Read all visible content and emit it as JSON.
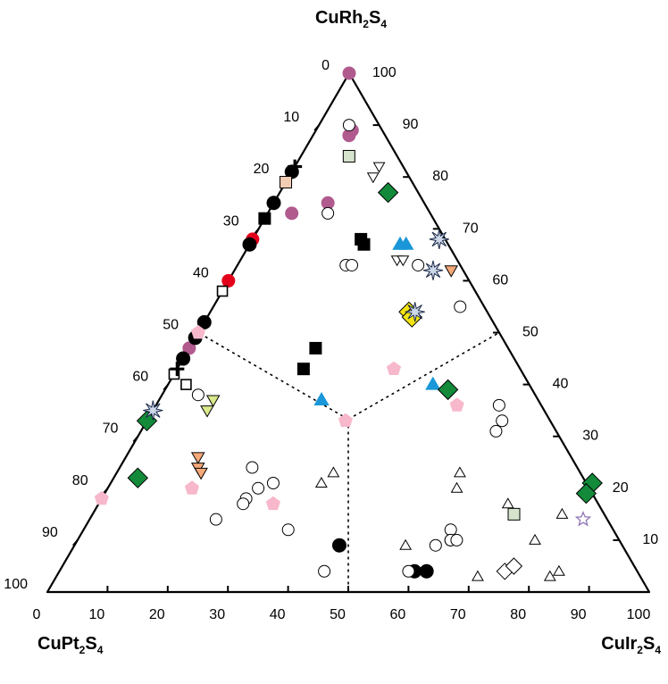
{
  "chart_data": {
    "type": "scatter",
    "subtype": "ternary",
    "vertices": {
      "top": {
        "main": "CuRh",
        "sub1": "2",
        "mid": "S",
        "sub2": "4"
      },
      "left": {
        "main": "CuPt",
        "sub1": "2",
        "mid": "S",
        "sub2": "4"
      },
      "right": {
        "main": "CuIr",
        "sub1": "2",
        "mid": "S",
        "sub2": "4"
      }
    },
    "axes": {
      "bottom": {
        "component": "CuIr2S4",
        "ticks": [
          "0",
          "10",
          "20",
          "30",
          "40",
          "50",
          "60",
          "70",
          "80",
          "90",
          "100"
        ]
      },
      "left": {
        "component": "CuPt2S4",
        "ticks": [
          "0",
          "10",
          "20",
          "30",
          "40",
          "50",
          "60",
          "70",
          "80",
          "90",
          "100"
        ]
      },
      "right": {
        "component": "CuRh2S4",
        "ticks": [
          "0",
          "10",
          "20",
          "30",
          "40",
          "50",
          "60",
          "70",
          "80",
          "90",
          "100"
        ]
      }
    },
    "boundaries": {
      "center": {
        "rh": 33.3,
        "ir": 33.3
      },
      "ends": [
        {
          "rh": 50,
          "ir": 0
        },
        {
          "rh": 50,
          "ir": 50
        },
        {
          "rh": 0,
          "ir": 50
        }
      ],
      "style": "dotted"
    },
    "grid": false,
    "colors": {
      "magenta": "#b05a8e",
      "red": "#e3001b",
      "green": "#138a3a",
      "blue": "#1a97d8",
      "yellow": "#f4e414",
      "pink": "#f7b8cb",
      "orange": "#f5a878",
      "lightgreen": "#d6e4ce",
      "yellowgreen": "#dbe88c",
      "peach": "#f3ccb4",
      "purple": "#9077b8"
    },
    "series": [
      {
        "marker": "circle-filled",
        "color": "#b05a8e",
        "points": [
          {
            "rh": 100,
            "ir": 0
          },
          {
            "rh": 88,
            "ir": 6
          },
          {
            "rh": 75,
            "ir": 9
          },
          {
            "rh": 67,
            "ir": 0
          },
          {
            "rh": 47,
            "ir": 0
          },
          {
            "rh": 89,
            "ir": 6
          },
          {
            "rh": 73,
            "ir": 4
          }
        ]
      },
      {
        "marker": "circle-filled",
        "color": "#e3001b",
        "points": [
          {
            "rh": 68,
            "ir": 0
          },
          {
            "rh": 60,
            "ir": 0
          }
        ]
      },
      {
        "marker": "circle-filled",
        "color": "#000000",
        "points": [
          {
            "rh": 81,
            "ir": 0
          },
          {
            "rh": 75,
            "ir": 0
          },
          {
            "rh": 67,
            "ir": 0
          },
          {
            "rh": 52,
            "ir": 0
          },
          {
            "rh": 49,
            "ir": 0
          },
          {
            "rh": 45,
            "ir": 0
          },
          {
            "rh": 9,
            "ir": 44
          },
          {
            "rh": 4,
            "ir": 59
          },
          {
            "rh": 4,
            "ir": 61
          }
        ]
      },
      {
        "marker": "square-filled",
        "color": "#000000",
        "points": [
          {
            "rh": 79,
            "ir": 0
          },
          {
            "rh": 72,
            "ir": 0
          },
          {
            "rh": 68,
            "ir": 18
          },
          {
            "rh": 67,
            "ir": 19
          },
          {
            "rh": 47,
            "ir": 21
          },
          {
            "rh": 43,
            "ir": 21
          }
        ]
      },
      {
        "marker": "square-open",
        "color": "#000000",
        "points": [
          {
            "rh": 58,
            "ir": 0
          },
          {
            "rh": 42,
            "ir": 0
          },
          {
            "rh": 40,
            "ir": 3
          }
        ]
      },
      {
        "marker": "square-filled",
        "color": "#d6e4ce",
        "points": [
          {
            "rh": 84,
            "ir": 8
          },
          {
            "rh": 15,
            "ir": 70
          }
        ]
      },
      {
        "marker": "square-filled",
        "color": "#f3ccb4",
        "points": [
          {
            "rh": 79,
            "ir": 0
          }
        ]
      },
      {
        "marker": "plus",
        "color": "#000000",
        "points": [
          {
            "rh": 82,
            "ir": 0
          },
          {
            "rh": 43,
            "ir": 0
          }
        ]
      },
      {
        "marker": "triangle-filled",
        "color": "#1a97d8",
        "points": [
          {
            "rh": 67,
            "ir": 25
          },
          {
            "rh": 67,
            "ir": 26
          },
          {
            "rh": 37,
            "ir": 27
          },
          {
            "rh": 40,
            "ir": 44
          }
        ]
      },
      {
        "marker": "diamond-filled",
        "color": "#138a3a",
        "points": [
          {
            "rh": 77,
            "ir": 18
          },
          {
            "rh": 39,
            "ir": 47
          },
          {
            "rh": 33,
            "ir": 0
          },
          {
            "rh": 22,
            "ir": 4
          },
          {
            "rh": 21,
            "ir": 80
          },
          {
            "rh": 19,
            "ir": 80
          }
        ]
      },
      {
        "marker": "diamond-filled",
        "color": "#f4e414",
        "points": [
          {
            "rh": 54,
            "ir": 33
          },
          {
            "rh": 53,
            "ir": 34
          }
        ]
      },
      {
        "marker": "pentagon-filled",
        "color": "#f7b8cb",
        "points": [
          {
            "rh": 50,
            "ir": 0
          },
          {
            "rh": 43,
            "ir": 36
          },
          {
            "rh": 33,
            "ir": 33
          },
          {
            "rh": 36,
            "ir": 50
          },
          {
            "rh": 20,
            "ir": 14
          },
          {
            "rh": 18,
            "ir": 0
          },
          {
            "rh": 17,
            "ir": 29
          }
        ]
      },
      {
        "marker": "triangle-down-filled",
        "color": "#dbe88c",
        "points": [
          {
            "rh": 37,
            "ir": 9
          },
          {
            "rh": 35,
            "ir": 9
          }
        ]
      },
      {
        "marker": "triangle-down-filled",
        "color": "#f5a878",
        "points": [
          {
            "rh": 26,
            "ir": 12
          },
          {
            "rh": 24,
            "ir": 13
          },
          {
            "rh": 62,
            "ir": 36
          },
          {
            "rh": 23,
            "ir": 14
          }
        ]
      },
      {
        "marker": "triangle-down-open",
        "color": "#000000",
        "points": [
          {
            "rh": 82,
            "ir": 14
          },
          {
            "rh": 80,
            "ir": 14
          },
          {
            "rh": 64,
            "ir": 26
          },
          {
            "rh": 64,
            "ir": 27
          }
        ]
      },
      {
        "marker": "star-burst",
        "color": "#cdd8e8",
        "points": [
          {
            "rh": 68,
            "ir": 31
          },
          {
            "rh": 62,
            "ir": 33
          },
          {
            "rh": 54,
            "ir": 34
          },
          {
            "rh": 35,
            "ir": 0
          }
        ]
      },
      {
        "marker": "star-open",
        "color": "#9077b8",
        "points": [
          {
            "rh": 14,
            "ir": 82
          }
        ]
      },
      {
        "marker": "circle-open",
        "color": "#000000",
        "points": [
          {
            "rh": 90,
            "ir": 5
          },
          {
            "rh": 73,
            "ir": 10
          },
          {
            "rh": 63,
            "ir": 18
          },
          {
            "rh": 63,
            "ir": 19
          },
          {
            "rh": 63,
            "ir": 30
          },
          {
            "rh": 55,
            "ir": 41
          },
          {
            "rh": 36,
            "ir": 57
          },
          {
            "rh": 33,
            "ir": 59
          },
          {
            "rh": 31,
            "ir": 59
          },
          {
            "rh": 38,
            "ir": 6
          },
          {
            "rh": 24,
            "ir": 22
          },
          {
            "rh": 21,
            "ir": 27
          },
          {
            "rh": 20,
            "ir": 25
          },
          {
            "rh": 18,
            "ir": 24
          },
          {
            "rh": 17,
            "ir": 24
          },
          {
            "rh": 14,
            "ir": 21
          },
          {
            "rh": 12,
            "ir": 34
          },
          {
            "rh": 4,
            "ir": 44
          },
          {
            "rh": 12,
            "ir": 61
          },
          {
            "rh": 10,
            "ir": 62
          },
          {
            "rh": 10,
            "ir": 62
          },
          {
            "rh": 9,
            "ir": 60
          },
          {
            "rh": 10,
            "ir": 63
          },
          {
            "rh": 4,
            "ir": 58
          }
        ]
      },
      {
        "marker": "triangle-open",
        "color": "#000000",
        "points": [
          {
            "rh": 23,
            "ir": 36
          },
          {
            "rh": 21,
            "ir": 35
          },
          {
            "rh": 23,
            "ir": 57
          },
          {
            "rh": 20,
            "ir": 58
          },
          {
            "rh": 17,
            "ir": 68
          },
          {
            "rh": 9,
            "ir": 55
          },
          {
            "rh": 10,
            "ir": 76
          },
          {
            "rh": 15,
            "ir": 78
          },
          {
            "rh": 3,
            "ir": 70
          },
          {
            "rh": 4,
            "ir": 83
          },
          {
            "rh": 3,
            "ir": 82
          }
        ]
      },
      {
        "marker": "diamond-open",
        "color": "#000000",
        "points": [
          {
            "rh": 4,
            "ir": 74
          },
          {
            "rh": 5,
            "ir": 75
          }
        ]
      }
    ]
  }
}
